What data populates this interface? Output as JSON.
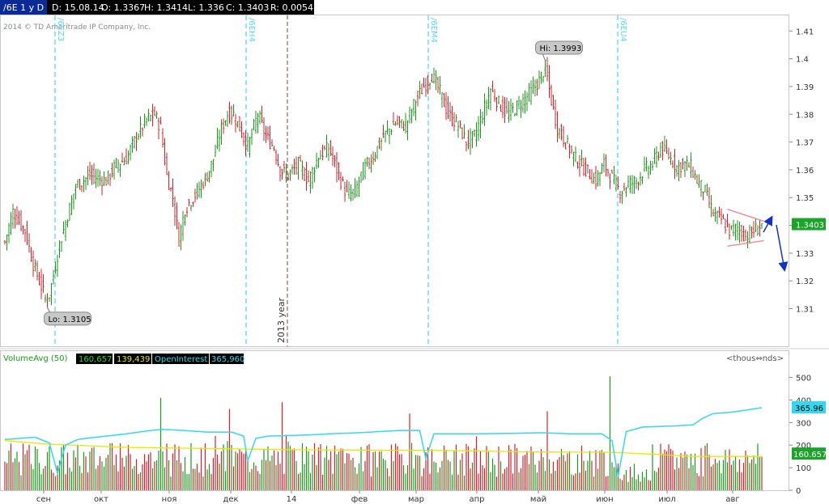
{
  "header": {
    "symbol": "/6E 1 y D",
    "date": "D: 15.08.14",
    "open": "O: 1.3367",
    "high": "H: 1.3414",
    "low": "L: 1.336",
    "close": "C: 1.3403",
    "range": "R: 0.0054"
  },
  "copyright": "2014 © TD Ameritrade IP Company, Inc.",
  "colors": {
    "up": "#1a9a1a",
    "down": "#dd1f2a",
    "rollover": "#55d8ee",
    "year_line": "#6b4a2e",
    "volume_avg": "#e8e800",
    "open_interest": "#33d8ee",
    "pattern": "#f08a94",
    "arrow": "#1030d0",
    "last_price_bg": "#1aa52a"
  },
  "chart_data": [
    {
      "type": "candlestick",
      "name": "/6E 1 y D",
      "x_ticks": [
        "сен",
        "окт",
        "ноя",
        "дек",
        "14",
        "фев",
        "мар",
        "апр",
        "май",
        "июн",
        "июл",
        "авг"
      ],
      "y_ticks": [
        "1.31",
        "1.32",
        "1.33",
        "1.34",
        "1.35",
        "1.36",
        "1.37",
        "1.38",
        "1.39",
        "1.4",
        "1.41"
      ],
      "ylim": [
        1.302,
        1.413
      ],
      "last_price": "1.3403",
      "high_label": "Hi: 1.3993",
      "low_label": "Lo: 1.3105",
      "high": 1.3993,
      "low": 1.3105,
      "rollovers": [
        "/6EZ3",
        "/6EH4",
        "/6EM4",
        "/6EU4"
      ],
      "year_marker": "2013 year",
      "close_path": [
        [
          0,
          1.334
        ],
        [
          4,
          1.345
        ],
        [
          10,
          1.338
        ],
        [
          14,
          1.326
        ],
        [
          18,
          1.318
        ],
        [
          21,
          1.3115
        ],
        [
          24,
          1.322
        ],
        [
          27,
          1.333
        ],
        [
          30,
          1.341
        ],
        [
          35,
          1.354
        ],
        [
          42,
          1.358
        ],
        [
          50,
          1.356
        ],
        [
          55,
          1.362
        ],
        [
          60,
          1.364
        ],
        [
          65,
          1.372
        ],
        [
          70,
          1.378
        ],
        [
          74,
          1.38
        ],
        [
          77,
          1.375
        ],
        [
          80,
          1.358
        ],
        [
          83,
          1.35
        ],
        [
          86,
          1.335
        ],
        [
          89,
          1.346
        ],
        [
          95,
          1.352
        ],
        [
          100,
          1.358
        ],
        [
          103,
          1.364
        ],
        [
          107,
          1.375
        ],
        [
          110,
          1.38
        ],
        [
          113,
          1.38
        ],
        [
          116,
          1.375
        ],
        [
          120,
          1.368
        ],
        [
          125,
          1.38
        ],
        [
          129,
          1.372
        ],
        [
          133,
          1.368
        ],
        [
          136,
          1.36
        ],
        [
          140,
          1.358
        ],
        [
          145,
          1.362
        ],
        [
          150,
          1.356
        ],
        [
          155,
          1.365
        ],
        [
          160,
          1.368
        ],
        [
          165,
          1.358
        ],
        [
          169,
          1.351
        ],
        [
          173,
          1.352
        ],
        [
          177,
          1.36
        ],
        [
          182,
          1.365
        ],
        [
          187,
          1.372
        ],
        [
          193,
          1.377
        ],
        [
          198,
          1.376
        ],
        [
          203,
          1.385
        ],
        [
          207,
          1.39
        ],
        [
          211,
          1.394
        ],
        [
          215,
          1.388
        ],
        [
          219,
          1.38
        ],
        [
          224,
          1.376
        ],
        [
          228,
          1.37
        ],
        [
          232,
          1.372
        ],
        [
          236,
          1.38
        ],
        [
          240,
          1.389
        ],
        [
          244,
          1.384
        ],
        [
          248,
          1.38
        ],
        [
          252,
          1.382
        ],
        [
          256,
          1.385
        ],
        [
          260,
          1.388
        ],
        [
          264,
          1.392
        ],
        [
          267,
          1.397
        ],
        [
          270,
          1.385
        ],
        [
          273,
          1.375
        ],
        [
          277,
          1.37
        ],
        [
          282,
          1.364
        ],
        [
          287,
          1.36
        ],
        [
          292,
          1.356
        ],
        [
          296,
          1.362
        ],
        [
          300,
          1.357
        ],
        [
          304,
          1.352
        ],
        [
          308,
          1.355
        ],
        [
          312,
          1.356
        ],
        [
          316,
          1.36
        ],
        [
          320,
          1.362
        ],
        [
          324,
          1.368
        ],
        [
          328,
          1.365
        ],
        [
          332,
          1.361
        ],
        [
          336,
          1.362
        ],
        [
          339,
          1.361
        ],
        [
          342,
          1.356
        ],
        [
          346,
          1.352
        ],
        [
          350,
          1.344
        ],
        [
          354,
          1.342
        ],
        [
          358,
          1.338
        ],
        [
          362,
          1.339
        ],
        [
          366,
          1.336
        ],
        [
          370,
          1.338
        ],
        [
          374,
          1.3403
        ]
      ]
    },
    {
      "type": "bar",
      "name": "Volume / Open Interest",
      "indicator_label": "VolumeAvg (50)",
      "volume_label": "160,657",
      "volume_avg_label": "139,439",
      "oi_label": "OpenInterest",
      "oi_value_label": "365,960",
      "unit_label": "<thous\u0000nds>",
      "unit_text": "<thous⇔nds>",
      "y_ticks": [
        "500",
        "400",
        "300",
        "200",
        "100",
        "0"
      ],
      "ylim": [
        0,
        520
      ],
      "oi_last": "365.96",
      "volume_last": "160.657",
      "spikes": [
        [
          77,
          410
        ],
        [
          111,
          360
        ],
        [
          137,
          390
        ],
        [
          200,
          340
        ],
        [
          268,
          350
        ],
        [
          299,
          505
        ]
      ],
      "volume_avg_path": [
        [
          0,
          220
        ],
        [
          20,
          205
        ],
        [
          60,
          190
        ],
        [
          100,
          185
        ],
        [
          140,
          180
        ],
        [
          180,
          178
        ],
        [
          220,
          176
        ],
        [
          260,
          170
        ],
        [
          300,
          168
        ],
        [
          320,
          160
        ],
        [
          340,
          150
        ],
        [
          374,
          150
        ]
      ],
      "oi_path": [
        [
          0,
          225
        ],
        [
          15,
          235
        ],
        [
          22,
          210
        ],
        [
          26,
          75
        ],
        [
          30,
          200
        ],
        [
          36,
          225
        ],
        [
          40,
          230
        ],
        [
          60,
          250
        ],
        [
          72,
          265
        ],
        [
          78,
          270
        ],
        [
          88,
          265
        ],
        [
          100,
          258
        ],
        [
          112,
          258
        ],
        [
          118,
          240
        ],
        [
          120,
          130
        ],
        [
          124,
          230
        ],
        [
          130,
          240
        ],
        [
          150,
          245
        ],
        [
          160,
          250
        ],
        [
          175,
          255
        ],
        [
          195,
          265
        ],
        [
          205,
          265
        ],
        [
          208,
          140
        ],
        [
          212,
          250
        ],
        [
          230,
          250
        ],
        [
          250,
          252
        ],
        [
          265,
          255
        ],
        [
          280,
          250
        ],
        [
          295,
          250
        ],
        [
          300,
          220
        ],
        [
          303,
          60
        ],
        [
          307,
          260
        ],
        [
          315,
          280
        ],
        [
          330,
          285
        ],
        [
          340,
          290
        ],
        [
          345,
          320
        ],
        [
          350,
          340
        ],
        [
          358,
          345
        ],
        [
          366,
          355
        ],
        [
          374,
          365.96
        ]
      ]
    }
  ]
}
